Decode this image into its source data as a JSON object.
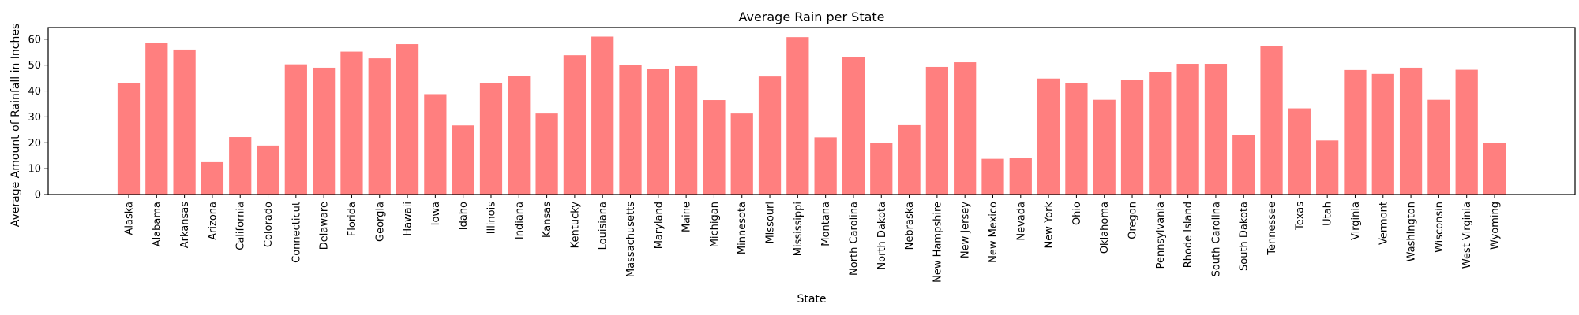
{
  "chart_data": {
    "type": "bar",
    "title": "Average Rain per State",
    "xlabel": "State",
    "ylabel": "Average Amount of Rainfall in Inches",
    "ylim": [
      0,
      64.5
    ],
    "yticks": [
      0,
      10,
      20,
      30,
      40,
      50,
      60
    ],
    "grid": false,
    "bar_color": "#ff7f7f",
    "categories": [
      "Alaska",
      "Alabama",
      "Arkansas",
      "Arizona",
      "California",
      "Colorado",
      "Connecticut",
      "Delaware",
      "Florida",
      "Georgia",
      "Hawaii",
      "Iowa",
      "Idaho",
      "Illinois",
      "Indiana",
      "Kansas",
      "Kentucky",
      "Louisiana",
      "Massachusetts",
      "Maryland",
      "Maine",
      "Michigan",
      "Minnesota",
      "Missouri",
      "Mississippi",
      "Montana",
      "North Carolina",
      "North Dakota",
      "Nebraska",
      "New Hampshire",
      "New Jersey",
      "New Mexico",
      "Nevada",
      "New York",
      "Ohio",
      "Oklahoma",
      "Oregon",
      "Pennsylvania",
      "Rhode Island",
      "South Carolina",
      "South Dakota",
      "Tennessee",
      "Texas",
      "Utah",
      "Virginia",
      "Vermont",
      "Washington",
      "Wisconsin",
      "West Virginia",
      "Wyoming"
    ],
    "values": [
      43.2,
      58.6,
      56.0,
      12.5,
      22.2,
      18.9,
      50.3,
      49.0,
      55.2,
      52.6,
      58.1,
      38.8,
      26.7,
      43.1,
      45.9,
      31.3,
      53.8,
      61.0,
      49.9,
      48.5,
      49.6,
      36.5,
      31.3,
      45.6,
      60.8,
      22.1,
      53.2,
      19.8,
      26.8,
      49.3,
      51.1,
      13.8,
      14.1,
      44.8,
      43.2,
      36.6,
      44.3,
      47.4,
      50.5,
      50.5,
      22.9,
      57.2,
      33.3,
      20.9,
      48.1,
      46.6,
      49.0,
      36.6,
      48.2,
      19.9
    ]
  }
}
